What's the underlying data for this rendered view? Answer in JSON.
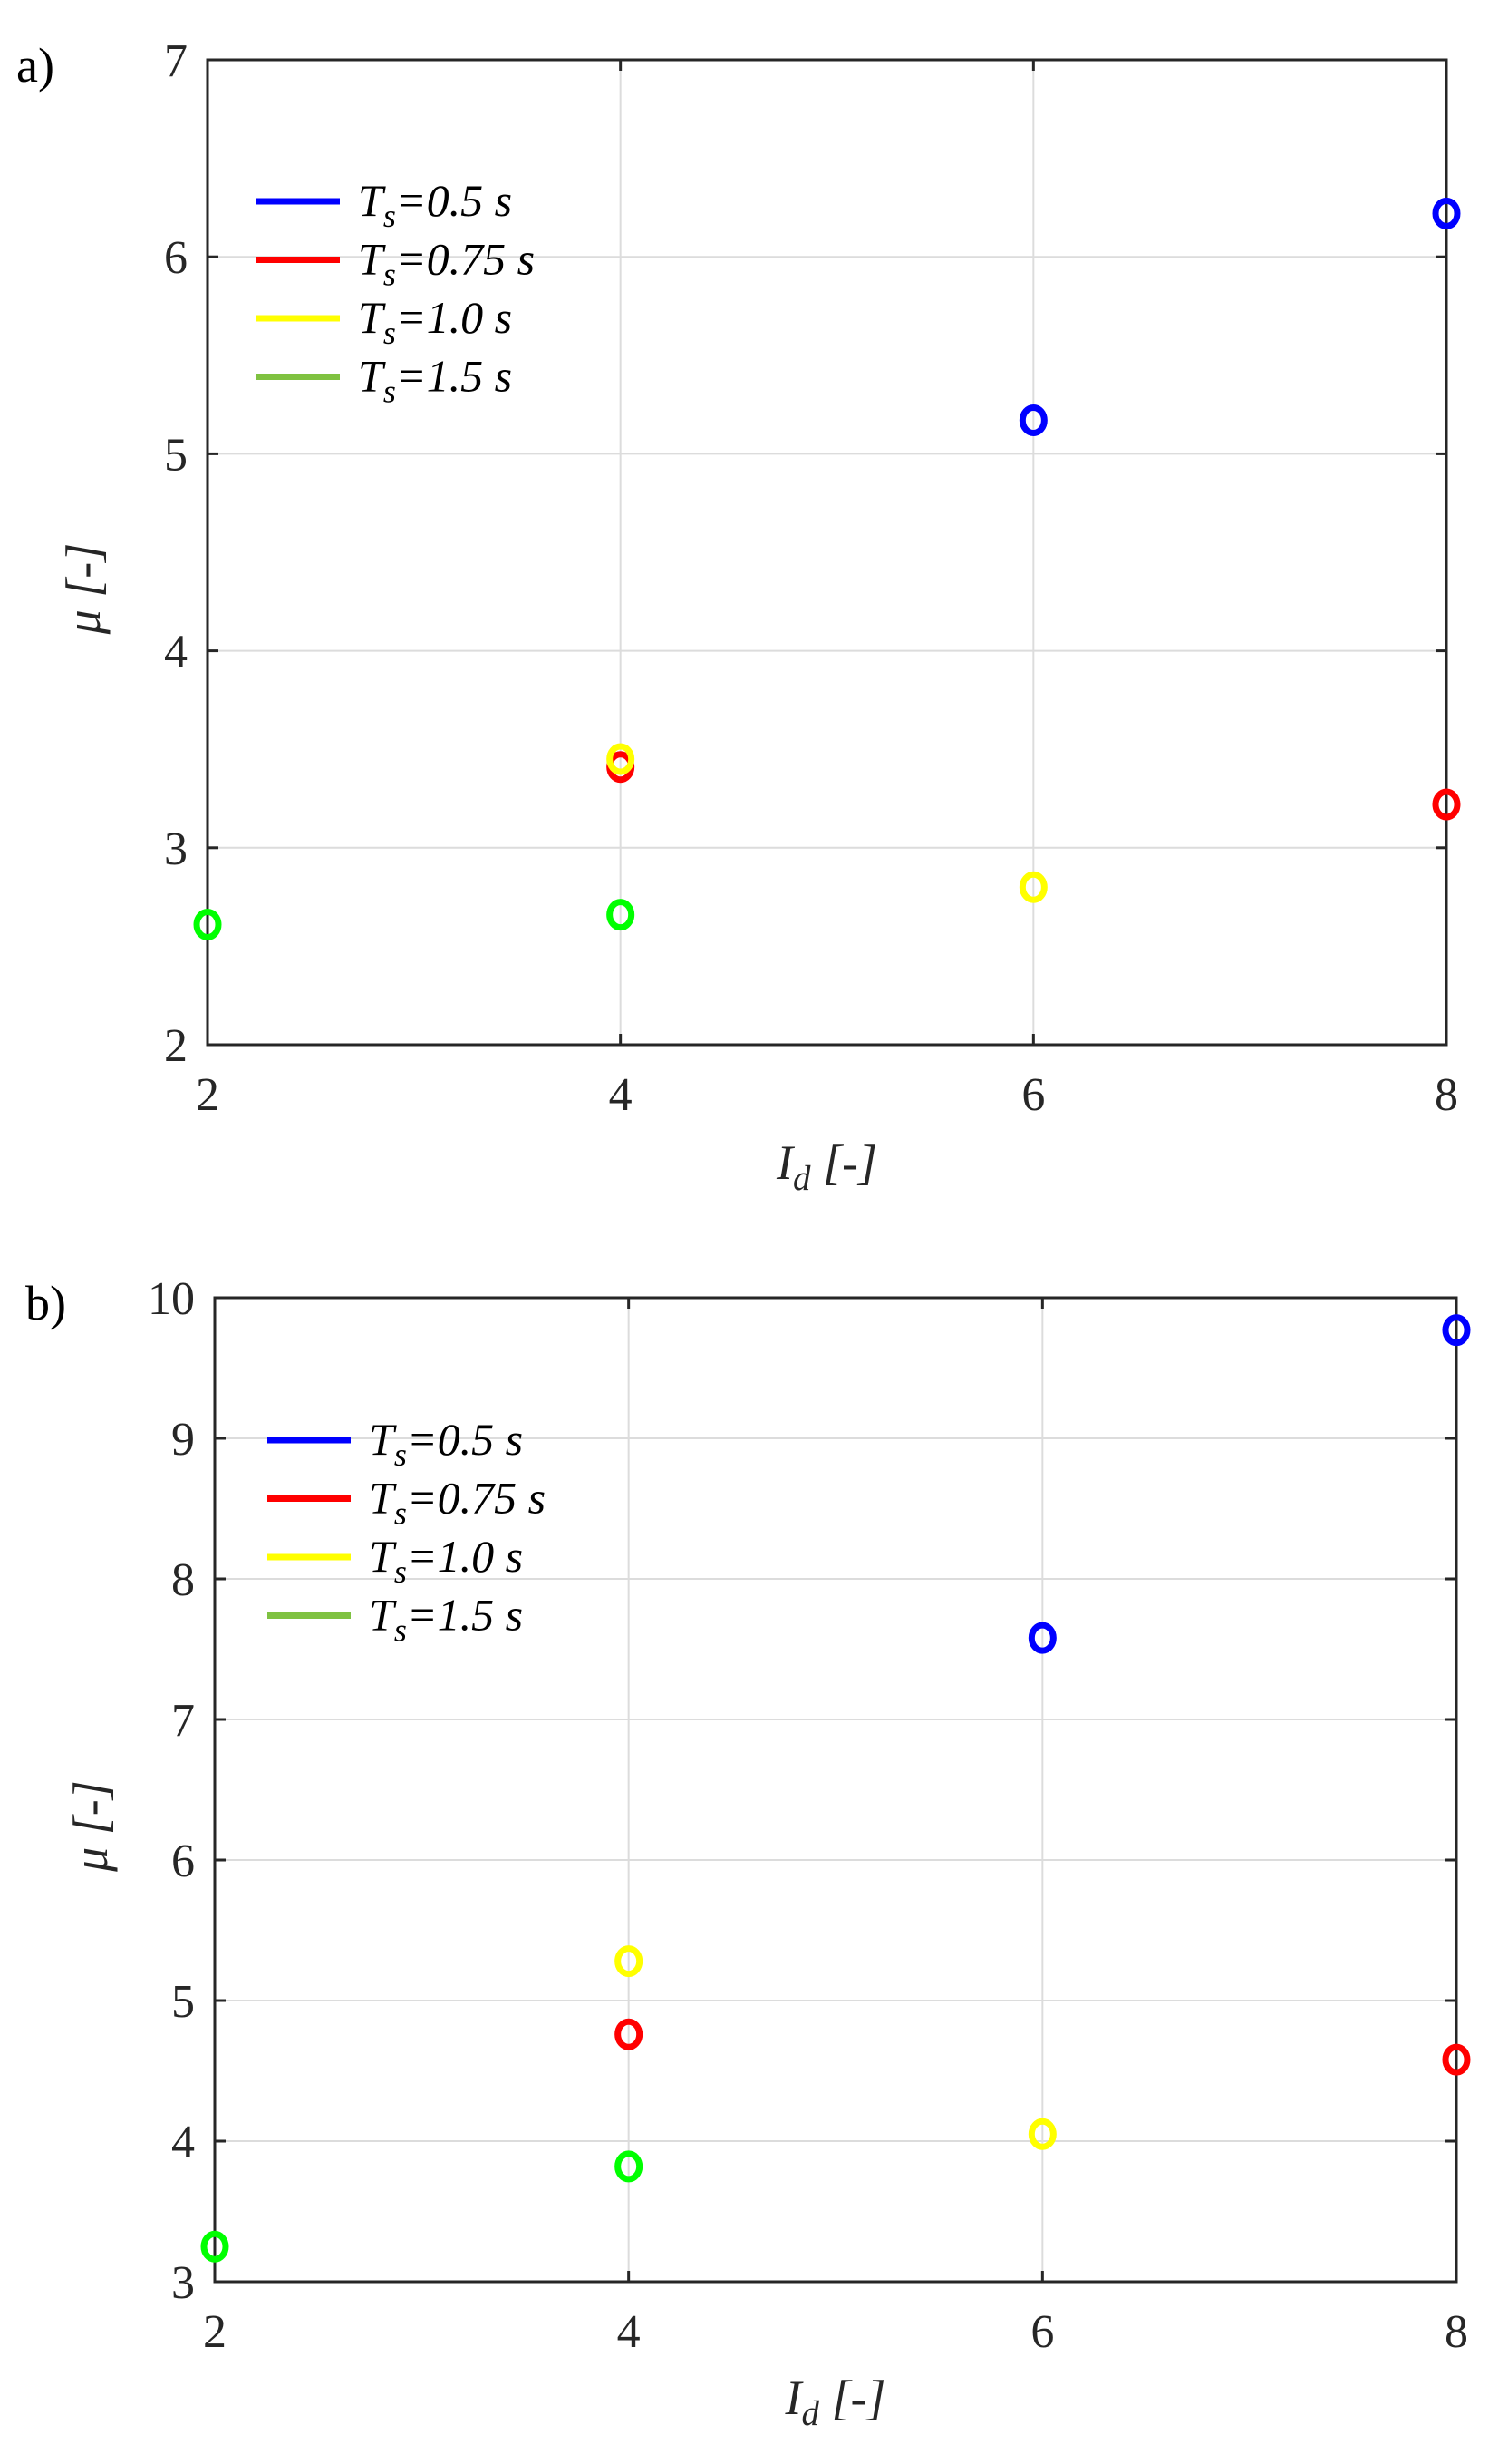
{
  "chart_data": [
    {
      "type": "scatter",
      "panel_label": "a)",
      "xlabel": {
        "sym": "I",
        "sub": "d",
        "rest": " [-]"
      },
      "ylabel": "μ [-]",
      "xlim": [
        2,
        8
      ],
      "ylim": [
        2,
        7
      ],
      "xticks": [
        "2",
        "4",
        "6",
        "8"
      ],
      "yticks": [
        "2",
        "3",
        "4",
        "5",
        "6",
        "7"
      ],
      "grid": true,
      "legend_position": "top-left",
      "series": [
        {
          "name": {
            "sym": "T",
            "sub": "s",
            "rest": "=0.5 s"
          },
          "color": "#0000ff",
          "marker_color": "#0000ff",
          "x": [
            6,
            8
          ],
          "y": [
            5.17,
            6.22
          ]
        },
        {
          "name": {
            "sym": "T",
            "sub": "s",
            "rest": "=0.75 s"
          },
          "color": "#ff0000",
          "marker_color": "#ff0000",
          "x": [
            4,
            8
          ],
          "y": [
            3.41,
            3.22
          ]
        },
        {
          "name": {
            "sym": "T",
            "sub": "s",
            "rest": "=1.0 s"
          },
          "color": "#ffff00",
          "marker_color": "#ffff00",
          "x": [
            4,
            6
          ],
          "y": [
            3.45,
            2.8
          ]
        },
        {
          "name": {
            "sym": "T",
            "sub": "s",
            "rest": "=1.5 s"
          },
          "color": "#7fc241",
          "marker_color": "#00ff00",
          "x": [
            2,
            4
          ],
          "y": [
            2.61,
            2.66
          ]
        }
      ]
    },
    {
      "type": "scatter",
      "panel_label": "b)",
      "xlabel": {
        "sym": "I",
        "sub": "d",
        "rest": " [-]"
      },
      "ylabel": "μ [-]",
      "xlim": [
        2,
        8
      ],
      "ylim": [
        3,
        10
      ],
      "xticks": [
        "2",
        "4",
        "6",
        "8"
      ],
      "yticks": [
        "3",
        "4",
        "5",
        "6",
        "7",
        "8",
        "9",
        "10"
      ],
      "grid": true,
      "legend_position": "top-left",
      "series": [
        {
          "name": {
            "sym": "T",
            "sub": "s",
            "rest": "=0.5 s"
          },
          "color": "#0000ff",
          "marker_color": "#0000ff",
          "x": [
            6,
            8
          ],
          "y": [
            7.58,
            9.77
          ]
        },
        {
          "name": {
            "sym": "T",
            "sub": "s",
            "rest": "=0.75 s"
          },
          "color": "#ff0000",
          "marker_color": "#ff0000",
          "x": [
            4,
            8
          ],
          "y": [
            4.76,
            4.58
          ]
        },
        {
          "name": {
            "sym": "T",
            "sub": "s",
            "rest": "=1.0 s"
          },
          "color": "#ffff00",
          "marker_color": "#ffff00",
          "x": [
            4,
            6
          ],
          "y": [
            5.28,
            4.05
          ]
        },
        {
          "name": {
            "sym": "T",
            "sub": "s",
            "rest": "=1.5 s"
          },
          "color": "#7fc241",
          "marker_color": "#00ff00",
          "x": [
            2,
            4
          ],
          "y": [
            3.25,
            3.82
          ]
        }
      ]
    }
  ]
}
